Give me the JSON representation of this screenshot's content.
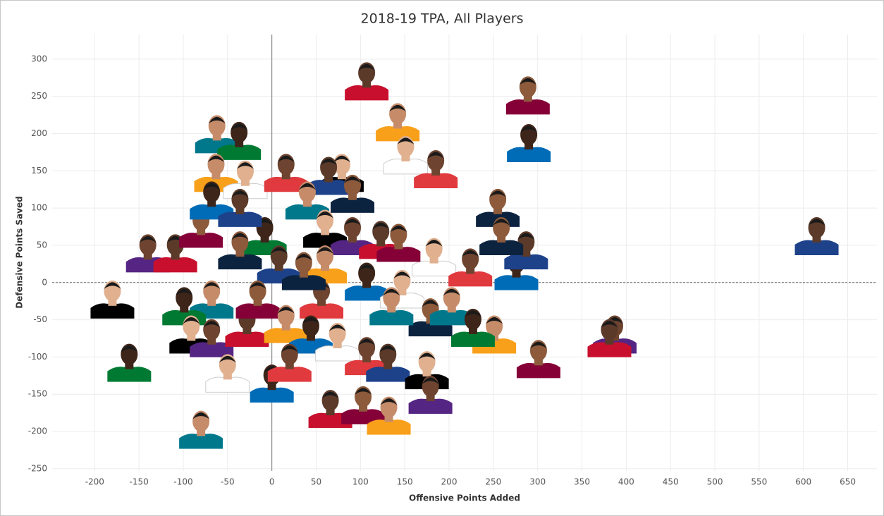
{
  "chart_data": {
    "type": "scatter",
    "title": "2018-19 TPA, All Players",
    "x_label": "Offensive Points Added",
    "y_label": "Defensive Points Saved",
    "x": [
      107,
      289,
      142,
      290,
      151,
      185,
      615,
      255,
      -62,
      -37,
      79,
      387,
      381,
      301,
      251,
      276,
      183,
      224,
      287,
      259,
      -80,
      -161,
      -180,
      -140,
      -109,
      -80,
      -63,
      -68,
      -30,
      16,
      64,
      91,
      40,
      -8,
      60,
      91,
      123,
      143,
      60,
      107,
      147,
      56,
      8,
      -36,
      -68,
      -99,
      -91,
      -68,
      -28,
      -16,
      16,
      44,
      74,
      107,
      131,
      179,
      203,
      227,
      175,
      179,
      66,
      103,
      132,
      0,
      -50,
      20,
      -36,
      36,
      135
    ],
    "y": [
      274,
      255,
      219,
      191,
      175,
      156,
      66,
      104,
      203,
      194,
      151,
      -66,
      -71,
      -99,
      -66,
      19,
      38,
      24,
      47,
      66,
      -194,
      -104,
      -19,
      43,
      43,
      76,
      151,
      114,
      142,
      151,
      147,
      123,
      114,
      66,
      76,
      66,
      61,
      57,
      28,
      5,
      -5,
      -19,
      28,
      47,
      -19,
      -28,
      -66,
      -71,
      -57,
      -19,
      -52,
      -66,
      -76,
      -95,
      -104,
      -43,
      -28,
      -57,
      -114,
      -147,
      -166,
      -161,
      -175,
      -132,
      -118,
      -104,
      104,
      19,
      -28
    ],
    "xlim": [
      -248,
      683
    ],
    "ylim": [
      -253,
      333
    ],
    "xticks": [
      -200,
      -150,
      -100,
      -50,
      0,
      50,
      100,
      150,
      200,
      250,
      300,
      350,
      400,
      450,
      500,
      550,
      600,
      650
    ],
    "yticks": [
      -250,
      -200,
      -150,
      -100,
      -50,
      0,
      50,
      100,
      150,
      200,
      250,
      300
    ],
    "grid": true
  }
}
